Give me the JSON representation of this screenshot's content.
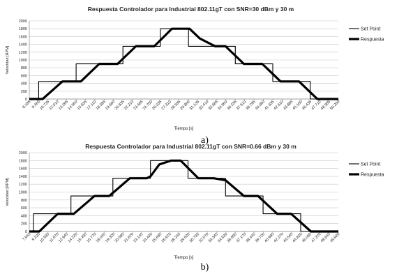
{
  "chart_data": [
    {
      "type": "line",
      "title": "Respuesta Controlador para Industrial 802.11gT con SNR=30 dBm y 30 m",
      "xlabel": "Tiempo [s]",
      "ylabel": "Velocidad [RPM]",
      "ylim": [
        0,
        2000
      ],
      "yticks": [
        0,
        200,
        400,
        600,
        800,
        1000,
        1200,
        1400,
        1600,
        1800,
        2000
      ],
      "xlim": [
        8.185,
        50.26
      ],
      "xtick_labels": [
        "8.185",
        "9.460",
        "10.735",
        "12.010",
        "13.285",
        "14.560",
        "15.835",
        "17.110",
        "18.385",
        "19.660",
        "20.935",
        "22.210",
        "23.485",
        "24.760",
        "26.035",
        "27.310",
        "28.585",
        "29.860",
        "31.135",
        "32.410",
        "33.685",
        "34.960",
        "36.235",
        "37.510",
        "38.785",
        "40.060",
        "41.335",
        "42.610",
        "43.885",
        "45.160",
        "46.435",
        "47.710",
        "48.985",
        "50.260"
      ],
      "legend": "right",
      "grid": true,
      "caption": "a)",
      "series": [
        {
          "name": "Set Point",
          "style": "thin",
          "x": [
            8.185,
            9.46,
            9.46,
            14.56,
            14.56,
            20.935,
            20.935,
            26.035,
            26.035,
            29.86,
            29.86,
            36.235,
            36.235,
            41.335,
            41.335,
            46.435,
            46.435,
            50.26
          ],
          "y": [
            0,
            0,
            450,
            450,
            900,
            900,
            1350,
            1350,
            1800,
            1800,
            1350,
            1350,
            900,
            900,
            450,
            450,
            0,
            0
          ]
        },
        {
          "name": "Respuesta",
          "style": "thick",
          "x": [
            8.185,
            10.0,
            12.7,
            15.2,
            17.7,
            20.2,
            22.7,
            25.2,
            27.6,
            28.8,
            30.0,
            31.4,
            33.5,
            34.9,
            37.4,
            39.9,
            42.4,
            44.9,
            47.4,
            50.26
          ],
          "y": [
            0,
            0,
            450,
            450,
            900,
            900,
            1350,
            1350,
            1800,
            1800,
            1800,
            1550,
            1350,
            1350,
            900,
            900,
            450,
            450,
            0,
            0
          ]
        }
      ]
    },
    {
      "type": "line",
      "title": "Respuesta Controlador para Industrial 802.11gT con SNR=0.66 dBm y 30 m",
      "xlabel": "Tiempo [s]",
      "ylabel": "Velocidad [RPM]",
      "ylim": [
        0,
        2000
      ],
      "yticks": [
        0,
        200,
        400,
        600,
        800,
        1000,
        1200,
        1400,
        1600,
        1800,
        2000
      ],
      "xlim": [
        7.945,
        49.92
      ],
      "xtick_labels": [
        "7.945",
        "9.220",
        "10.595",
        "11.670",
        "12.945",
        "14.220",
        "15.495",
        "16.770",
        "18.045",
        "19.320",
        "20.595",
        "21.870",
        "23.145",
        "24.420",
        "25.695",
        "26.970",
        "28.245",
        "29.520",
        "30.795",
        "32.070",
        "33.345",
        "34.620",
        "35.895",
        "37.170",
        "38.445",
        "39.720",
        "40.995",
        "42.270",
        "43.545",
        "44.820",
        "46.095",
        "47.370",
        "48.645",
        "49.920"
      ],
      "legend": "right",
      "grid": true,
      "caption": "b)",
      "series": [
        {
          "name": "Set Point",
          "style": "thin",
          "x": [
            7.945,
            8.5,
            8.5,
            13.6,
            13.6,
            19.3,
            19.3,
            24.4,
            24.4,
            29.5,
            29.5,
            34.6,
            34.6,
            39.7,
            39.7,
            44.8,
            44.8,
            49.92
          ],
          "y": [
            0,
            0,
            450,
            450,
            900,
            900,
            1350,
            1350,
            1800,
            1800,
            1350,
            1350,
            900,
            900,
            450,
            450,
            0,
            0
          ]
        },
        {
          "name": "Respuesta",
          "style": "thick",
          "x": [
            7.945,
            9.3,
            11.8,
            14.0,
            16.8,
            18.8,
            21.6,
            23.9,
            24.4,
            25.6,
            27.2,
            28.5,
            30.9,
            33.0,
            34.6,
            37.1,
            39.0,
            41.6,
            43.5,
            46.2,
            48.0,
            49.92
          ],
          "y": [
            0,
            0,
            450,
            450,
            900,
            900,
            1350,
            1350,
            1400,
            1700,
            1800,
            1800,
            1350,
            1350,
            1300,
            900,
            900,
            450,
            450,
            0,
            0,
            0
          ]
        }
      ]
    }
  ]
}
